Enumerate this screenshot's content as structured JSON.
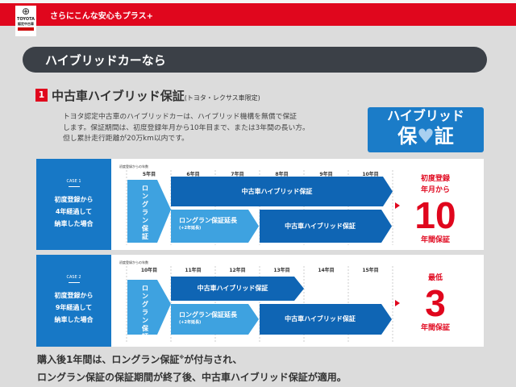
{
  "header": {
    "tagline": "さらにこんな安心もプラス+",
    "logo_text": "TOYOTA",
    "logo_sub": "認定中古車"
  },
  "section_bar": {
    "title": "ハイブリッドカーなら"
  },
  "section": {
    "number": "1",
    "title": "中古車ハイブリッド保証",
    "title_note": "(トヨタ・レクサス車限定)",
    "paragraph": [
      "トヨタ認定中古車のハイブリッドカーは、ハイブリッド機構を無償で保証",
      "します。保証期間は、初度登録年月から10年目まで、または3年間の長い方。",
      "但し累計走行距離が20万km以内です。"
    ]
  },
  "badge": {
    "line1": "ハイブリッド",
    "line2a": "保",
    "heart": "♥",
    "line2b": "証"
  },
  "colors": {
    "red": "#e0061d",
    "dark_blue": "#0f65b4",
    "light_blue": "#3ea2e0",
    "case_blue": "#1778c6",
    "pill": "#3b4047"
  },
  "cases": [
    {
      "case_label": "CASE 1",
      "desc": [
        "初度登録から",
        "4年経過して",
        "納車した場合"
      ],
      "axis_label": "初度登録からの年数",
      "years": [
        "5年目",
        "6年目",
        "7年目",
        "8年目",
        "9年目",
        "10年目"
      ],
      "longrun": "ロングラン保証",
      "hybrid_top": "中古車ハイブリッド保証",
      "extend": "ロングラン保証延長",
      "extend_note": "(+2年延長)",
      "hybrid_bottom": "中古車ハイブリッド保証",
      "result_pre": [
        "初度登録",
        "年月から"
      ],
      "result_num": "10",
      "result_post": "年間保証"
    },
    {
      "case_label": "CASE 2",
      "desc": [
        "初度登録から",
        "9年経過して",
        "納車した場合"
      ],
      "axis_label": "初度登録からの年数",
      "years": [
        "10年目",
        "11年目",
        "12年目",
        "13年目",
        "14年目",
        "15年目"
      ],
      "longrun": "ロングラン保証",
      "hybrid_top": "中古車ハイブリッド保証",
      "extend": "ロングラン保証延長",
      "extend_note": "(+2年延長)",
      "hybrid_bottom": "中古車ハイブリッド保証",
      "result_pre": [
        "最低"
      ],
      "result_num": "3",
      "result_post": "年間保証"
    }
  ],
  "footer": {
    "line1a": "購入後1年間は、ロングラン保証",
    "line1_mark": "※",
    "line1b": "が付与され、",
    "line2": "ロングラン保証の保証期間が終了後、中古車ハイブリッド保証が適用。"
  }
}
